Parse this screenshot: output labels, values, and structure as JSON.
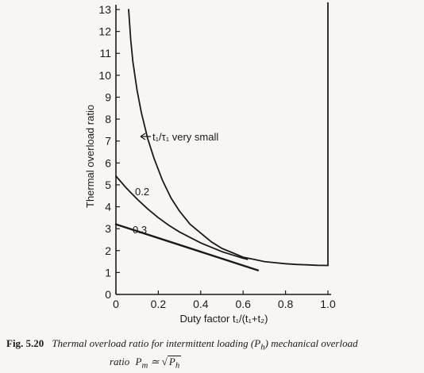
{
  "chart_data": {
    "type": "line",
    "ylabel": "Thermal overload ratio",
    "xlabel": "Duty factor t₁/(t₁+t₂)",
    "xlim": [
      0,
      1.0
    ],
    "ylim": [
      0,
      13
    ],
    "xticks": [
      "0",
      "0.2",
      "0.4",
      "0.6",
      "0.8",
      "1.0"
    ],
    "yticks": [
      "0",
      "1",
      "2",
      "3",
      "4",
      "5",
      "6",
      "7",
      "8",
      "9",
      "10",
      "11",
      "12",
      "13"
    ],
    "grid": false,
    "series": [
      {
        "name": "t₁/τ₁ very small",
        "x": [
          0.06,
          0.07,
          0.08,
          0.1,
          0.12,
          0.15,
          0.18,
          0.22,
          0.26,
          0.3,
          0.35,
          0.4,
          0.45,
          0.5,
          0.55,
          0.6,
          0.65,
          0.7,
          0.75,
          0.8,
          0.85,
          0.9,
          0.95,
          1.0
        ],
        "y": [
          13.0,
          11.6,
          10.6,
          9.3,
          8.3,
          7.1,
          6.2,
          5.2,
          4.4,
          3.8,
          3.2,
          2.8,
          2.4,
          2.1,
          1.9,
          1.7,
          1.6,
          1.5,
          1.45,
          1.4,
          1.37,
          1.35,
          1.33,
          1.32
        ]
      },
      {
        "name": "0.2",
        "x": [
          0.0,
          0.05,
          0.1,
          0.15,
          0.2,
          0.25,
          0.3,
          0.35,
          0.4,
          0.45,
          0.5,
          0.55,
          0.6,
          0.62
        ],
        "y": [
          5.4,
          4.85,
          4.35,
          3.9,
          3.5,
          3.15,
          2.85,
          2.6,
          2.35,
          2.15,
          1.95,
          1.8,
          1.65,
          1.6
        ]
      },
      {
        "name": "0.3",
        "x": [
          0.0,
          0.67
        ],
        "y": [
          3.2,
          1.1
        ]
      },
      {
        "name": "",
        "x": [
          1.0,
          1.0
        ],
        "y": [
          1.32,
          13.3
        ]
      }
    ],
    "annotations": [
      "t₁/τ₁ very small",
      "0.2",
      "0.3"
    ]
  },
  "caption": {
    "figure_number": "Fig. 5.20",
    "text": "Thermal overload ratio for intermittent loading (P",
    "text_sub": "h",
    "text_end": ") mechanical overload",
    "line2_prefix": "ratio",
    "formula_lhs": "P",
    "formula_lhs_sub": "m",
    "formula_op": "≃",
    "formula_rhs": "P",
    "formula_rhs_sub": "h"
  }
}
